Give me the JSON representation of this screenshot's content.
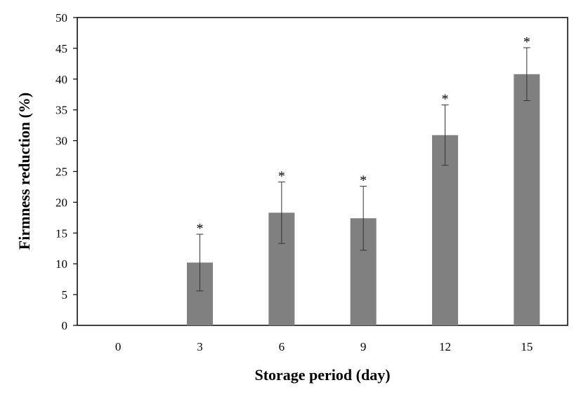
{
  "chart_data": {
    "type": "bar",
    "categories": [
      "0",
      "3",
      "6",
      "9",
      "12",
      "15"
    ],
    "values": [
      0,
      10.2,
      18.3,
      17.4,
      30.9,
      40.8
    ],
    "errors": [
      0,
      4.6,
      5.0,
      5.2,
      4.9,
      4.3
    ],
    "significance": [
      "",
      "*",
      "*",
      "*",
      "*",
      "*"
    ],
    "xlabel": "Storage period  (day)",
    "ylabel": "Firmness  reduction  (%)",
    "ylim": [
      0,
      50
    ],
    "yticks": [
      "0",
      "5",
      "10",
      "15",
      "20",
      "25",
      "30",
      "35",
      "40",
      "45",
      "50"
    ],
    "grid": false,
    "bar_color": "#808080"
  }
}
